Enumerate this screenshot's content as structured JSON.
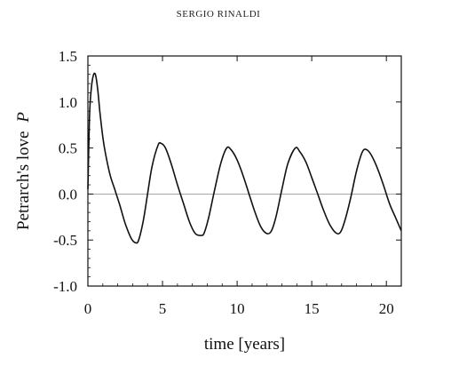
{
  "header": {
    "running_head": "SERGIO RINALDI"
  },
  "chart_data": {
    "type": "line",
    "title": "",
    "xlabel": "time [years]",
    "ylabel": "Petrarch's love",
    "ylabel_symbol": "P",
    "xlim": [
      0,
      21
    ],
    "ylim": [
      -1.0,
      1.5
    ],
    "x_ticks": [
      0,
      5,
      10,
      15,
      20
    ],
    "x_tick_labels": [
      "0",
      "5",
      "10",
      "15",
      "20"
    ],
    "y_ticks": [
      1.5,
      1.0,
      0.5,
      0.0,
      -0.5,
      -1.0
    ],
    "y_tick_labels": [
      "1.5",
      "1.0",
      "0.5",
      "0.0",
      "-0.5",
      "-1.0"
    ],
    "reference_line_y": 0,
    "grid": false,
    "series": [
      {
        "x": [
          0,
          0.1,
          0.2,
          0.35,
          0.5,
          0.65,
          0.8,
          1.0,
          1.2,
          1.5,
          1.8,
          2.1,
          2.5,
          2.9,
          3.2,
          3.4,
          3.7,
          4.0,
          4.3,
          4.7,
          4.9,
          5.2,
          5.6,
          6.0,
          6.4,
          6.8,
          7.2,
          7.6,
          7.8,
          8.1,
          8.5,
          8.9,
          9.3,
          9.6,
          10.0,
          10.4,
          10.8,
          11.2,
          11.6,
          12.0,
          12.3,
          12.6,
          13.0,
          13.4,
          13.9,
          14.2,
          14.6,
          15.0,
          15.4,
          15.8,
          16.2,
          16.6,
          16.9,
          17.2,
          17.6,
          18.0,
          18.4,
          18.7,
          19.0,
          19.4,
          19.8,
          20.2,
          20.6,
          21.0
        ],
        "y": [
          0.05,
          0.8,
          1.1,
          1.28,
          1.3,
          1.15,
          0.9,
          0.62,
          0.42,
          0.2,
          0.05,
          -0.1,
          -0.32,
          -0.48,
          -0.53,
          -0.5,
          -0.3,
          0.0,
          0.3,
          0.53,
          0.55,
          0.5,
          0.32,
          0.1,
          -0.1,
          -0.3,
          -0.43,
          -0.45,
          -0.42,
          -0.25,
          0.05,
          0.33,
          0.5,
          0.48,
          0.37,
          0.2,
          0.0,
          -0.2,
          -0.36,
          -0.43,
          -0.4,
          -0.25,
          0.05,
          0.33,
          0.5,
          0.46,
          0.35,
          0.18,
          0.0,
          -0.18,
          -0.33,
          -0.42,
          -0.42,
          -0.3,
          -0.05,
          0.25,
          0.46,
          0.48,
          0.42,
          0.28,
          0.1,
          -0.1,
          -0.25,
          -0.4
        ]
      }
    ]
  }
}
